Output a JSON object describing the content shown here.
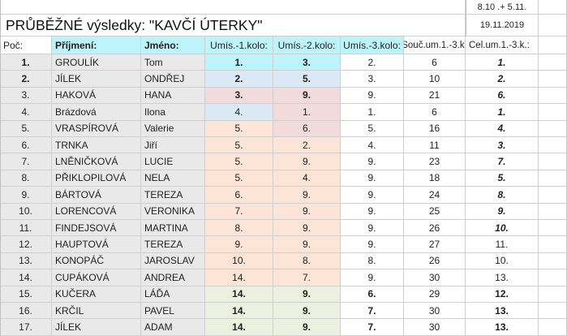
{
  "sheet": {
    "header_date_range": "8.10 .+ 5.11.",
    "header_date": "19.11.2019",
    "title": "PRŮBĚŽNÉ výsledky: \"KAVČÍ ÚTERKY\"",
    "columns": {
      "poc": "Poč:",
      "prijmeni": "Příjmení:",
      "jmeno": "Jméno:",
      "kolo1": "Umís.-1.kolo:",
      "kolo2": "Umís.-2.kolo:",
      "kolo3": "Umís.-3.kolo:",
      "soucet": "Souč.um.1.-3.k.",
      "celkem": "Cel.um.1.-3.k.:"
    },
    "rows": [
      {
        "poc": "1.",
        "prijmeni": "GROULÍK",
        "jmeno": "Tom",
        "k1": "1.",
        "k2": "3.",
        "k3": "2.",
        "sum": "6",
        "total": "1."
      },
      {
        "poc": "2.",
        "prijmeni": "JÍLEK",
        "jmeno": "ONDŘEJ",
        "k1": "2.",
        "k2": "5.",
        "k3": "3.",
        "sum": "10",
        "total": "2."
      },
      {
        "poc": "3.",
        "prijmeni": "HAKOVÁ",
        "jmeno": "HANA",
        "k1": "3.",
        "k2": "9.",
        "k3": "9.",
        "sum": "21",
        "total": "6."
      },
      {
        "poc": "4.",
        "prijmeni": "Brázdová",
        "jmeno": "Ilona",
        "k1": "4.",
        "k2": "1.",
        "k3": "1.",
        "sum": "6",
        "total": "1."
      },
      {
        "poc": "5.",
        "prijmeni": "VRASPÍROVÁ",
        "jmeno": "Valerie",
        "k1": "5.",
        "k2": "6.",
        "k3": "5.",
        "sum": "16",
        "total": "4."
      },
      {
        "poc": "6.",
        "prijmeni": "TRNKA",
        "jmeno": "Jiří",
        "k1": "5.",
        "k2": "2.",
        "k3": "4.",
        "sum": "11",
        "total": "3."
      },
      {
        "poc": "7.",
        "prijmeni": "LNĚNIČKOVÁ",
        "jmeno": "LUCIE",
        "k1": "5.",
        "k2": "9.",
        "k3": "9.",
        "sum": "23",
        "total": "7."
      },
      {
        "poc": "8.",
        "prijmeni": "PŘIKLOPILOVÁ",
        "jmeno": "NELA",
        "k1": "5.",
        "k2": "4.",
        "k3": "9.",
        "sum": "18",
        "total": "5."
      },
      {
        "poc": "9.",
        "prijmeni": "BÁRTOVÁ",
        "jmeno": "TEREZA",
        "k1": "6.",
        "k2": "9.",
        "k3": "9.",
        "sum": "24",
        "total": "8."
      },
      {
        "poc": "10.",
        "prijmeni": "LORENCOVÁ",
        "jmeno": "VERONIKA",
        "k1": "7.",
        "k2": "9.",
        "k3": "9.",
        "sum": "25",
        "total": "9."
      },
      {
        "poc": "11.",
        "prijmeni": "FINDEJSOVÁ",
        "jmeno": "MARTINA",
        "k1": "8.",
        "k2": "9.",
        "k3": "9.",
        "sum": "26",
        "total": "10."
      },
      {
        "poc": "12.",
        "prijmeni": "HAUPTOVÁ",
        "jmeno": "TEREZA",
        "k1": "9.",
        "k2": "9.",
        "k3": "9.",
        "sum": "27",
        "total": "11."
      },
      {
        "poc": "13.",
        "prijmeni": "KONOPÁČ",
        "jmeno": "JAROSLAV",
        "k1": "10.",
        "k2": "8.",
        "k3": "8.",
        "sum": "26",
        "total": "10."
      },
      {
        "poc": "14.",
        "prijmeni": "CUPÁKOVÁ",
        "jmeno": "ANDREA",
        "k1": "14.",
        "k2": "7.",
        "k3": "9.",
        "sum": "30",
        "total": "13."
      },
      {
        "poc": "15.",
        "prijmeni": "KUČERA",
        "jmeno": "LÁĎA",
        "k1": "14.",
        "k2": "9.",
        "k3": "6.",
        "sum": "29",
        "total": "12."
      },
      {
        "poc": "16.",
        "prijmeni": "KRČIL",
        "jmeno": "PAVEL",
        "k1": "14.",
        "k2": "9.",
        "k3": "7.",
        "sum": "30",
        "total": "13."
      },
      {
        "poc": "17.",
        "prijmeni": "JÍLEK",
        "jmeno": "ADAM",
        "k1": "14.",
        "k2": "9.",
        "k3": "7.",
        "sum": "30",
        "total": "13."
      }
    ]
  }
}
